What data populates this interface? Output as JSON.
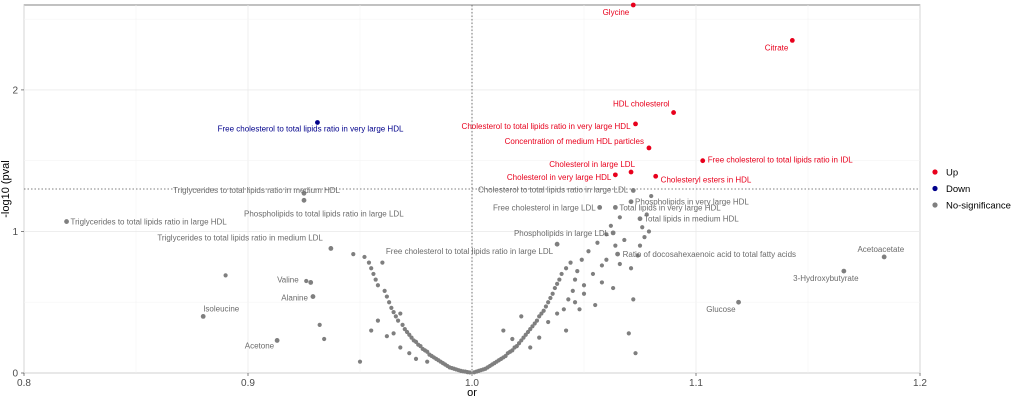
{
  "chart_data": {
    "type": "scatter",
    "xlabel": "or",
    "ylabel": "-log10 (pval",
    "xlim": [
      0.8,
      1.2
    ],
    "ylim": [
      0,
      2.6
    ],
    "x_ticks": [
      0.8,
      0.9,
      1.0,
      1.1,
      1.2
    ],
    "x_tick_labels": [
      "0.8",
      "0.9",
      "1.0",
      "1.1",
      "1.2"
    ],
    "y_ticks": [
      0,
      1,
      2
    ],
    "y_tick_labels": [
      "0",
      "1",
      "2"
    ],
    "grid": true,
    "ref_vline": 1.0,
    "ref_hline": 1.3,
    "legend": {
      "placement": "right",
      "entries": [
        {
          "key": "up",
          "label": "Up",
          "color": "#e8001c"
        },
        {
          "key": "down",
          "label": "Down",
          "color": "#00008b"
        },
        {
          "key": "ns",
          "label": "No-significance",
          "color": "#7f7f7f"
        }
      ]
    },
    "labeled_points": [
      {
        "label": "Glycine",
        "x": 1.072,
        "y": 2.6,
        "group": "up"
      },
      {
        "label": "Citrate",
        "x": 1.143,
        "y": 2.35,
        "group": "up"
      },
      {
        "label": "HDL cholesterol",
        "x": 1.09,
        "y": 1.84,
        "group": "up"
      },
      {
        "label": "Cholesterol to total lipids ratio in very large HDL",
        "x": 1.073,
        "y": 1.76,
        "group": "up"
      },
      {
        "label": "Concentration of medium HDL particles",
        "x": 1.079,
        "y": 1.59,
        "group": "up"
      },
      {
        "label": "Free cholesterol to total lipids ratio in IDL",
        "x": 1.103,
        "y": 1.5,
        "group": "up"
      },
      {
        "label": "Cholesterol in large LDL",
        "x": 1.071,
        "y": 1.42,
        "group": "up"
      },
      {
        "label": "Cholesterol in very large HDL",
        "x": 1.064,
        "y": 1.4,
        "group": "up"
      },
      {
        "label": "Cholesteryl esters in HDL",
        "x": 1.082,
        "y": 1.39,
        "group": "up"
      },
      {
        "label": "Free cholesterol to total lipids ratio in very large HDL",
        "x": 0.931,
        "y": 1.77,
        "group": "down"
      },
      {
        "label": "Triglycerides to total lipids ratio in medium HDL",
        "x": 0.925,
        "y": 1.27,
        "group": "ns"
      },
      {
        "label": "Phospholipids to total lipids ratio in large LDL",
        "x": 0.925,
        "y": 1.22,
        "group": "ns"
      },
      {
        "label": "Triglycerides to total lipids ratio in large HDL",
        "x": 0.819,
        "y": 1.07,
        "group": "ns"
      },
      {
        "label": "Triglycerides to total lipids ratio in medium LDL",
        "x": 0.937,
        "y": 0.88,
        "group": "ns"
      },
      {
        "label": "Cholesterol to total lipids ratio in large LDL",
        "x": 1.072,
        "y": 1.29,
        "group": "ns"
      },
      {
        "label": "Phospholipids in very large HDL",
        "x": 1.071,
        "y": 1.21,
        "group": "ns"
      },
      {
        "label": "Free cholesterol in large LDL",
        "x": 1.057,
        "y": 1.17,
        "group": "ns"
      },
      {
        "label": "Total lipids in very large HDL",
        "x": 1.064,
        "y": 1.17,
        "group": "ns"
      },
      {
        "label": "Total lipids in medium HDL",
        "x": 1.075,
        "y": 1.09,
        "group": "ns"
      },
      {
        "label": "Phospholipids in large LDL",
        "x": 1.063,
        "y": 0.99,
        "group": "ns"
      },
      {
        "label": "Free cholesterol to total lipids ratio in large LDL",
        "x": 1.038,
        "y": 0.91,
        "group": "ns"
      },
      {
        "label": "Ratio of docosahexaenoic acid to total fatty acids",
        "x": 1.065,
        "y": 0.84,
        "group": "ns"
      },
      {
        "label": "Acetoacetate",
        "x": 1.184,
        "y": 0.82,
        "group": "ns"
      },
      {
        "label": "3-Hydroxybutyrate",
        "x": 1.166,
        "y": 0.72,
        "group": "ns"
      },
      {
        "label": "Valine",
        "x": 0.928,
        "y": 0.64,
        "group": "ns"
      },
      {
        "label": "Alanine",
        "x": 0.929,
        "y": 0.54,
        "group": "ns"
      },
      {
        "label": "Isoleucine",
        "x": 0.88,
        "y": 0.4,
        "group": "ns"
      },
      {
        "label": "Acetone",
        "x": 0.913,
        "y": 0.23,
        "group": "ns"
      },
      {
        "label": "Glucose",
        "x": 1.119,
        "y": 0.5,
        "group": "ns"
      }
    ],
    "points": [
      [
        0.89,
        0.69
      ],
      [
        0.926,
        0.65
      ],
      [
        0.932,
        0.34
      ],
      [
        0.934,
        0.24
      ],
      [
        0.947,
        0.84
      ],
      [
        0.95,
        0.08
      ],
      [
        0.952,
        0.82
      ],
      [
        0.954,
        0.78
      ],
      [
        0.955,
        0.74
      ],
      [
        0.956,
        0.7
      ],
      [
        0.957,
        0.66
      ],
      [
        0.958,
        0.62
      ],
      [
        0.96,
        0.78
      ],
      [
        0.961,
        0.58
      ],
      [
        0.962,
        0.54
      ],
      [
        0.963,
        0.5
      ],
      [
        0.964,
        0.46
      ],
      [
        0.965,
        0.43
      ],
      [
        0.966,
        0.4
      ],
      [
        0.967,
        0.37
      ],
      [
        0.968,
        0.42
      ],
      [
        0.969,
        0.34
      ],
      [
        0.97,
        0.31
      ],
      [
        0.971,
        0.29
      ],
      [
        0.972,
        0.27
      ],
      [
        0.973,
        0.25
      ],
      [
        0.974,
        0.23
      ],
      [
        0.975,
        0.22
      ],
      [
        0.976,
        0.2
      ],
      [
        0.977,
        0.19
      ],
      [
        0.978,
        0.17
      ],
      [
        0.979,
        0.16
      ],
      [
        0.98,
        0.15
      ],
      [
        0.981,
        0.13
      ],
      [
        0.982,
        0.12
      ],
      [
        0.983,
        0.11
      ],
      [
        0.984,
        0.1
      ],
      [
        0.985,
        0.09
      ],
      [
        0.986,
        0.08
      ],
      [
        0.987,
        0.07
      ],
      [
        0.988,
        0.06
      ],
      [
        0.989,
        0.05
      ],
      [
        0.99,
        0.04
      ],
      [
        0.991,
        0.035
      ],
      [
        0.992,
        0.03
      ],
      [
        0.993,
        0.025
      ],
      [
        0.994,
        0.02
      ],
      [
        0.995,
        0.015
      ],
      [
        0.996,
        0.012
      ],
      [
        0.997,
        0.01
      ],
      [
        0.998,
        0.006
      ],
      [
        0.999,
        0.004
      ],
      [
        0.962,
        0.26
      ],
      [
        0.968,
        0.18
      ],
      [
        0.955,
        0.3
      ],
      [
        0.958,
        0.37
      ],
      [
        0.965,
        0.28
      ],
      [
        0.972,
        0.14
      ],
      [
        0.975,
        0.1
      ],
      [
        0.98,
        0.08
      ],
      [
        1.001,
        0.005
      ],
      [
        1.002,
        0.01
      ],
      [
        1.003,
        0.015
      ],
      [
        1.004,
        0.02
      ],
      [
        1.005,
        0.025
      ],
      [
        1.006,
        0.03
      ],
      [
        1.007,
        0.04
      ],
      [
        1.008,
        0.05
      ],
      [
        1.009,
        0.06
      ],
      [
        1.01,
        0.07
      ],
      [
        1.011,
        0.08
      ],
      [
        1.012,
        0.09
      ],
      [
        1.013,
        0.1
      ],
      [
        1.014,
        0.11
      ],
      [
        1.015,
        0.12
      ],
      [
        1.016,
        0.14
      ],
      [
        1.017,
        0.15
      ],
      [
        1.018,
        0.16
      ],
      [
        1.019,
        0.18
      ],
      [
        1.02,
        0.19
      ],
      [
        1.021,
        0.21
      ],
      [
        1.022,
        0.23
      ],
      [
        1.023,
        0.25
      ],
      [
        1.024,
        0.27
      ],
      [
        1.025,
        0.29
      ],
      [
        1.026,
        0.31
      ],
      [
        1.027,
        0.33
      ],
      [
        1.028,
        0.35
      ],
      [
        1.029,
        0.37
      ],
      [
        1.03,
        0.4
      ],
      [
        1.031,
        0.42
      ],
      [
        1.032,
        0.44
      ],
      [
        1.033,
        0.47
      ],
      [
        1.034,
        0.5
      ],
      [
        1.035,
        0.53
      ],
      [
        1.036,
        0.56
      ],
      [
        1.037,
        0.6
      ],
      [
        1.038,
        0.63
      ],
      [
        1.039,
        0.66
      ],
      [
        1.04,
        0.7
      ],
      [
        1.041,
        0.45
      ],
      [
        1.042,
        0.74
      ],
      [
        1.043,
        0.52
      ],
      [
        1.044,
        0.78
      ],
      [
        1.045,
        0.58
      ],
      [
        1.046,
        0.66
      ],
      [
        1.047,
        0.72
      ],
      [
        1.048,
        0.45
      ],
      [
        1.049,
        0.8
      ],
      [
        1.05,
        0.62
      ],
      [
        1.052,
        0.86
      ],
      [
        1.054,
        0.7
      ],
      [
        1.056,
        0.92
      ],
      [
        1.058,
        0.76
      ],
      [
        1.06,
        0.98
      ],
      [
        1.062,
        1.04
      ],
      [
        1.064,
        0.9
      ],
      [
        1.066,
        1.1
      ],
      [
        1.068,
        0.94
      ],
      [
        1.07,
        0.28
      ],
      [
        1.071,
        0.74
      ],
      [
        1.072,
        0.52
      ],
      [
        1.073,
        0.14
      ],
      [
        1.074,
        0.83
      ],
      [
        1.075,
        0.9
      ],
      [
        1.076,
        1.03
      ],
      [
        1.077,
        0.96
      ],
      [
        1.078,
        1.12
      ],
      [
        1.079,
        1.0
      ],
      [
        1.08,
        1.25
      ],
      [
        1.014,
        0.3
      ],
      [
        1.018,
        0.24
      ],
      [
        1.022,
        0.4
      ],
      [
        1.026,
        0.18
      ],
      [
        1.03,
        0.25
      ],
      [
        1.034,
        0.36
      ],
      [
        1.038,
        0.42
      ],
      [
        1.042,
        0.3
      ],
      [
        1.046,
        0.5
      ],
      [
        1.05,
        0.56
      ],
      [
        1.055,
        0.48
      ],
      [
        1.058,
        0.64
      ],
      [
        1.06,
        0.8
      ],
      [
        1.063,
        0.6
      ],
      [
        1.066,
        0.77
      ]
    ]
  }
}
